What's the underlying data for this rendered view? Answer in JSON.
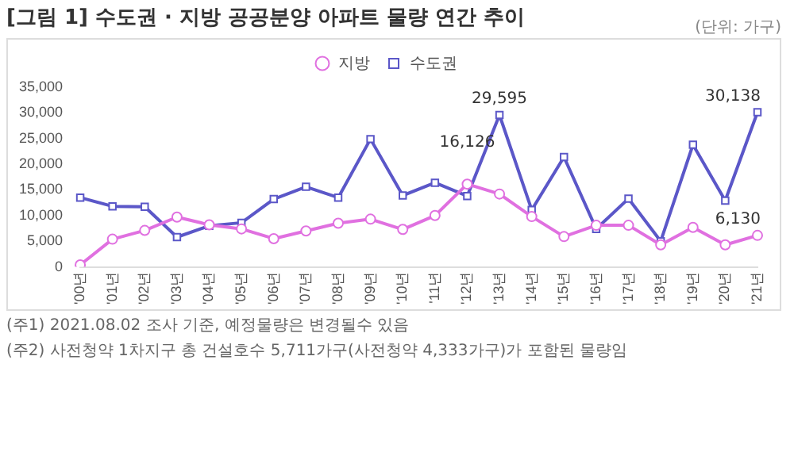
{
  "chart_data": {
    "type": "line",
    "title": "[그림 1] 수도권 · 지방 공공분양 아파트 물량 연간 추이",
    "subtitle": "(단위: 가구)",
    "categories": [
      "'00년",
      "'01년",
      "'02년",
      "'03년",
      "'04년",
      "'05년",
      "'06년",
      "'07년",
      "'08년",
      "'09년",
      "'10년",
      "'11년",
      "'12년",
      "'13년",
      "'14년",
      "'15년",
      "'16년",
      "'17년",
      "'18년",
      "'19년",
      "'20년",
      "'21년"
    ],
    "series": [
      {
        "name": "수도권",
        "color": "#5b57c8",
        "marker": "square",
        "values": [
          13500,
          11800,
          11700,
          5800,
          8000,
          8600,
          13200,
          15600,
          13500,
          24900,
          13900,
          16400,
          13800,
          29595,
          11100,
          21400,
          7400,
          13300,
          5000,
          23800,
          12900,
          30138
        ],
        "value_labels": [
          null,
          null,
          null,
          null,
          null,
          null,
          null,
          null,
          null,
          null,
          null,
          null,
          null,
          "29,595",
          null,
          null,
          null,
          null,
          null,
          null,
          null,
          "30,138"
        ]
      },
      {
        "name": "지방",
        "color": "#e070e0",
        "marker": "circle",
        "values": [
          400,
          5400,
          7100,
          9700,
          8200,
          7400,
          5500,
          7000,
          8500,
          9300,
          7300,
          10000,
          16126,
          14200,
          9800,
          5900,
          8100,
          8100,
          4300,
          7700,
          4300,
          6130
        ],
        "value_labels": [
          null,
          null,
          null,
          null,
          null,
          null,
          null,
          null,
          null,
          null,
          null,
          null,
          "16,126",
          null,
          null,
          null,
          null,
          null,
          null,
          null,
          null,
          "6,130"
        ]
      }
    ],
    "ylim": [
      0,
      35000
    ],
    "yticks": [
      0,
      {
        "value": 5000,
        "label": "5,000"
      },
      {
        "value": 10000,
        "label": "10,000"
      },
      {
        "value": 15000,
        "label": "15,000"
      },
      {
        "value": 20000,
        "label": "20,000"
      },
      {
        "value": 25000,
        "label": "25,000"
      },
      {
        "value": 30000,
        "label": "30,000"
      },
      {
        "value": 35000,
        "label": "35,000"
      }
    ],
    "grid": false,
    "legend": "top",
    "annotations": [
      "(주1) 2021.08.02 조사 기준, 예정물량은 변경될수 있음",
      "(주2) 사전청약 1차지구 총 건설호수 5,711가구(사전청약 4,333가구)가 포함된 물량임"
    ]
  }
}
